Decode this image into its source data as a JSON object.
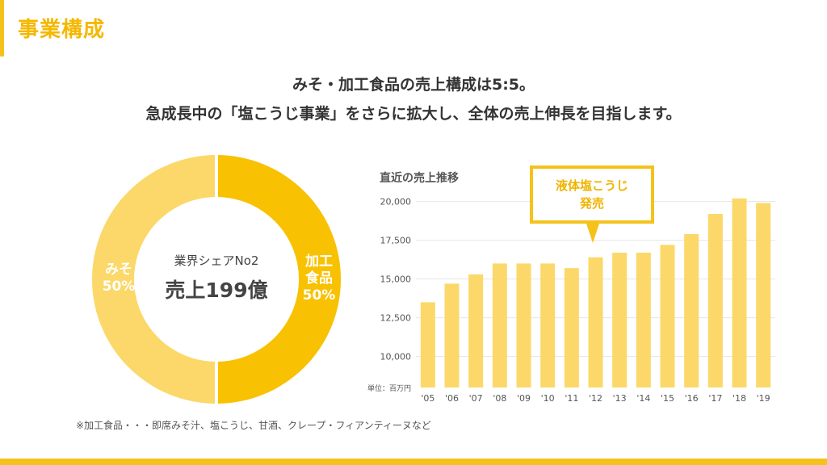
{
  "page": {
    "title": "事業構成",
    "headline1": "みそ・加工食品の売上構成は5:5。",
    "headline2": "急成長中の「塩こうじ事業」をさらに拡大し、全体の売上伸長を目指します。",
    "footnote": "※加工食品・・・即席みそ汁、塩こうじ、甘酒、クレープ・フィアンティーヌなど"
  },
  "donut": {
    "center_line1": "業界シェアNo2",
    "center_line2": "売上199億",
    "segments": [
      {
        "label_line1": "加工",
        "label_line2": "食品",
        "percent_label": "50%",
        "value": 50,
        "color": "#f8c101"
      },
      {
        "label_line1": "みそ",
        "label_line2": "",
        "percent_label": "50%",
        "value": 50,
        "color": "#fbd869"
      }
    ]
  },
  "chart_data": {
    "type": "bar",
    "title": "直近の売上推移",
    "unit_label": "単位：百万円",
    "categories": [
      "'05",
      "'06",
      "'07",
      "'08",
      "'09",
      "'10",
      "'11",
      "'12",
      "'13",
      "'14",
      "'15",
      "'16",
      "'17",
      "'18",
      "'19"
    ],
    "values": [
      13500,
      14700,
      15300,
      16000,
      16000,
      16000,
      15700,
      16400,
      16700,
      16700,
      17200,
      17900,
      19200,
      20200,
      19900
    ],
    "ylim": [
      8000,
      20500
    ],
    "yticks": [
      10000,
      12500,
      15000,
      17500,
      20000
    ],
    "ytick_labels": [
      "10,000",
      "12,500",
      "15,000",
      "17,500",
      "20,000"
    ],
    "bar_color": "#fbd869",
    "grid": true,
    "annotation": {
      "line1": "液体塩こうじ",
      "line2": "発売",
      "category": "'12"
    }
  }
}
